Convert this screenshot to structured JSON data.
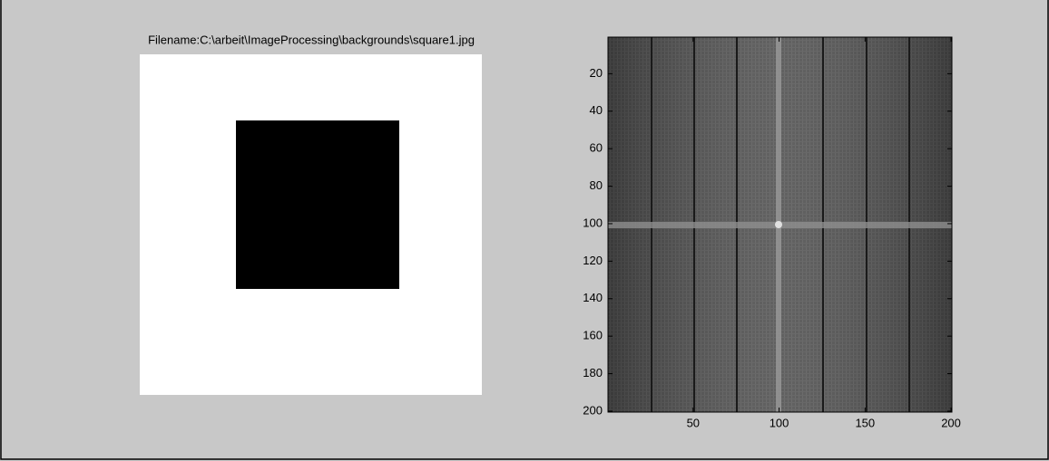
{
  "chart_data": [
    {
      "type": "image",
      "title": "Filename:C:\\arbeit\\ImageProcessing\\backgrounds\\square1.jpg"
    },
    {
      "type": "image",
      "xlim": [
        0.5,
        200.5
      ],
      "ylim": [
        0.5,
        200.5
      ],
      "y_reversed": true,
      "xticks": [
        50,
        100,
        150,
        200
      ],
      "yticks": [
        20,
        40,
        60,
        80,
        100,
        120,
        140,
        160,
        180,
        200
      ]
    }
  ]
}
